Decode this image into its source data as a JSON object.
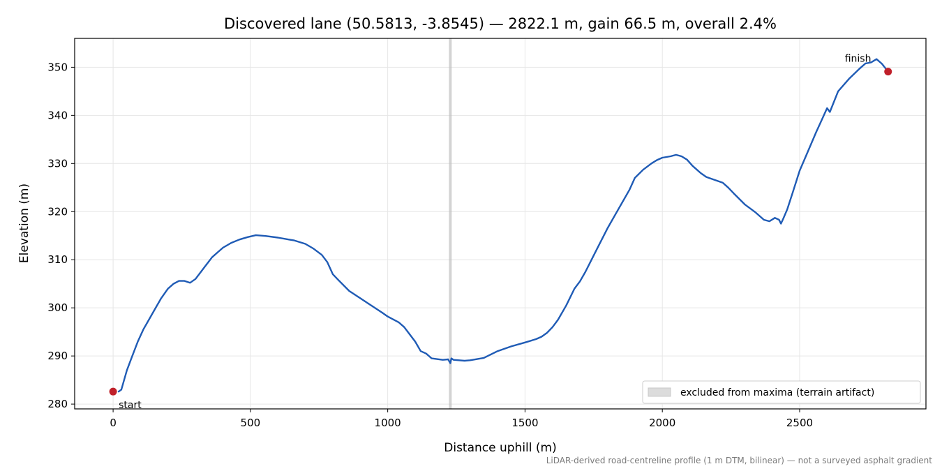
{
  "chart_data": {
    "type": "line",
    "title": "Discovered lane (50.5813, -3.8545) — 2822.1 m, gain 66.5 m, overall 2.4%",
    "xlabel": "Distance uphill (m)",
    "ylabel": "Elevation (m)",
    "xlim": [
      -140,
      2960
    ],
    "ylim": [
      279,
      356
    ],
    "xticks": [
      0,
      500,
      1000,
      1500,
      2000,
      2500
    ],
    "yticks": [
      280,
      290,
      300,
      310,
      320,
      330,
      340,
      350
    ],
    "grid": true,
    "legend_position": "lower-right",
    "colors": {
      "line": "#1f5bb5",
      "markers": "#c0202a",
      "band": "#bdbdbd"
    },
    "excluded_band": {
      "x": 1228,
      "label": "excluded from maxima (terrain artifact)"
    },
    "series": [
      {
        "x": [
          20,
          30,
          50,
          70,
          90,
          110,
          130,
          150,
          175,
          200,
          220,
          240,
          260,
          280,
          300,
          320,
          340,
          360,
          380,
          400,
          430,
          460,
          490,
          520,
          540,
          560,
          600,
          640,
          660,
          700,
          730,
          760,
          780,
          800,
          820,
          860,
          900,
          940,
          980,
          1000,
          1040,
          1060,
          1080,
          1100,
          1120,
          1140,
          1160,
          1200,
          1220,
          1228,
          1232,
          1240,
          1280,
          1300,
          1350,
          1400,
          1450,
          1500,
          1540,
          1560,
          1580,
          1600,
          1620,
          1650,
          1680,
          1700,
          1720,
          1760,
          1800,
          1840,
          1880,
          1900,
          1930,
          1960,
          1980,
          2000,
          2030,
          2050,
          2070,
          2090,
          2110,
          2140,
          2160,
          2180,
          2220,
          2240,
          2260,
          2300,
          2340,
          2370,
          2390,
          2410,
          2425,
          2432,
          2440,
          2455,
          2475,
          2500,
          2530,
          2560,
          2580,
          2600,
          2610,
          2640,
          2680,
          2720,
          2740,
          2760,
          2780,
          2800,
          2822.1
        ],
        "y": [
          282.6,
          283,
          287,
          290,
          293,
          295.5,
          297.5,
          299.5,
          302,
          304,
          305,
          305.6,
          305.6,
          305.2,
          306,
          307.5,
          309,
          310.5,
          311.5,
          312.5,
          313.5,
          314.2,
          314.7,
          315.1,
          315.0,
          314.9,
          314.6,
          314.2,
          314.0,
          313.3,
          312.3,
          311,
          309.5,
          307,
          305.8,
          303.5,
          302,
          300.5,
          299,
          298.2,
          297.0,
          296.0,
          294.5,
          293.0,
          291.0,
          290.5,
          289.5,
          289.2,
          289.3,
          288.5,
          289.5,
          289.2,
          289.0,
          289.1,
          289.6,
          291.0,
          292.0,
          292.8,
          293.5,
          294.0,
          294.8,
          296.0,
          297.5,
          300.5,
          304.0,
          305.5,
          307.5,
          312.0,
          316.5,
          320.5,
          324.5,
          327.0,
          328.7,
          330.0,
          330.7,
          331.2,
          331.5,
          331.8,
          331.5,
          330.8,
          329.5,
          328,
          327.2,
          326.8,
          326.0,
          325.0,
          323.8,
          321.5,
          319.8,
          318.3,
          318.0,
          318.7,
          318.3,
          317.5,
          318.5,
          320.5,
          324.0,
          328.5,
          332.5,
          336.5,
          339.0,
          341.5,
          340.7,
          345.0,
          347.6,
          349.8,
          350.8,
          351.0,
          351.7,
          350.7,
          349.1
        ]
      }
    ],
    "start_point": {
      "x": 0,
      "y": 282.6,
      "label": "start"
    },
    "finish_point": {
      "x": 2822.1,
      "y": 349.1,
      "label": "finish"
    },
    "footnote": "LiDAR-derived road-centreline profile (1 m DTM, bilinear) — not a surveyed asphalt gradient"
  }
}
